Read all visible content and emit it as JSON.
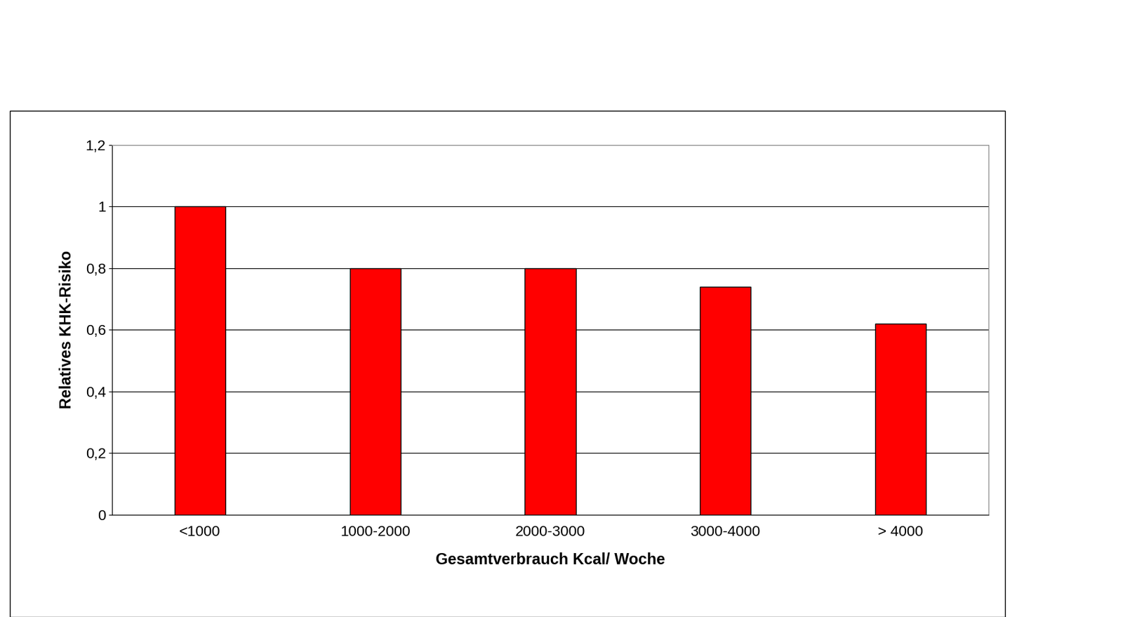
{
  "chart_data": {
    "type": "bar",
    "x_label": "Gesamtverbrauch Kcal/ Woche",
    "y_label": "Relatives KHK-Risiko",
    "categories": [
      "<1000",
      "1000-2000",
      "2000-3000",
      "3000-4000",
      "> 4000"
    ],
    "values": [
      1.0,
      0.8,
      0.8,
      0.74,
      0.62
    ],
    "color": "#ff0000",
    "ylim": [
      0,
      1.2
    ],
    "yticks": [
      0,
      {
        "value": 0.2,
        "label": "0,2"
      },
      {
        "value": 0.4,
        "label": "0,4"
      },
      {
        "value": 0.6,
        "label": "0,6"
      },
      {
        "value": 0.8,
        "label": "0,8"
      },
      1,
      {
        "value": 1.2,
        "label": "1,2"
      }
    ],
    "grid": true
  }
}
